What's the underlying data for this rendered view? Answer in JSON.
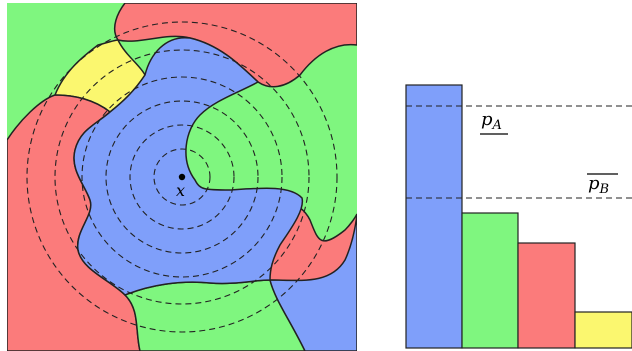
{
  "left_panel": {
    "center_label": "x",
    "colors": {
      "blue": "#7f9ffa",
      "green": "#7ff67f",
      "red": "#fb7b7b",
      "yellow": "#fbf76f",
      "outline": "#222222"
    }
  },
  "right_panel": {
    "bars": [
      {
        "color_name": "blue",
        "fraction": 1.0
      },
      {
        "color_name": "green",
        "fraction": 0.51
      },
      {
        "color_name": "red",
        "fraction": 0.39
      },
      {
        "color_name": "yellow",
        "fraction": 0.13
      }
    ],
    "lower_bound_label": "p",
    "lower_bound_sub": "A",
    "upper_bound_label": "p",
    "upper_bound_sub": "B",
    "lower_bound_fraction": 0.91,
    "upper_bound_fraction": 0.56
  }
}
